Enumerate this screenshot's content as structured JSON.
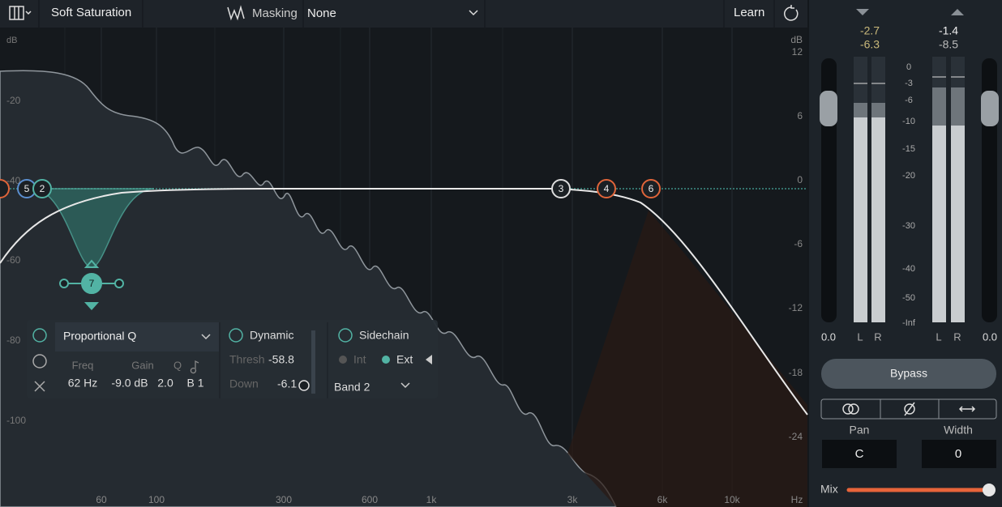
{
  "toolbar": {
    "preset": "Soft Saturation",
    "masking": "Masking",
    "masking_value": "None",
    "learn": "Learn"
  },
  "graph": {
    "left_unit": "dB",
    "left_labels": [
      "-20",
      "-40",
      "-60",
      "-80",
      "-100"
    ],
    "right_unit": "dB",
    "right_labels": [
      "12",
      "6",
      "0",
      "-6",
      "-12",
      "-18",
      "-24"
    ],
    "freq_labels": [
      "60",
      "100",
      "300",
      "600",
      "1k",
      "3k",
      "6k",
      "10k",
      "Hz"
    ],
    "nodes": [
      "5",
      "2",
      "3",
      "4",
      "6",
      "7"
    ]
  },
  "band_panel": {
    "shape": "Proportional Q",
    "headers": [
      "Freq",
      "Gain",
      "Q"
    ],
    "values": [
      "62 Hz",
      "-9.0 dB",
      "2.0",
      "B 1"
    ],
    "dynamic": "Dynamic",
    "thresh_label": "Thresh",
    "thresh": "-58.8",
    "down_label": "Down",
    "down": "-6.1",
    "sidechain": "Sidechain",
    "int": "Int",
    "ext": "Ext",
    "band": "Band 2"
  },
  "meters": {
    "input_peaks": [
      "-2.7",
      "-6.3"
    ],
    "output_peaks": [
      "-1.4",
      "-8.5"
    ],
    "scale": [
      "0",
      "-3",
      "-6",
      "-10",
      "-15",
      "-20",
      "-30",
      "-40",
      "-50",
      "-Inf"
    ],
    "input_gain": "0.0",
    "output_gain": "0.0",
    "channels": [
      "L",
      "R",
      "L",
      "R"
    ]
  },
  "controls": {
    "bypass": "Bypass",
    "pan_label": "Pan",
    "pan": "C",
    "width_label": "Width",
    "width": "0",
    "mix": "Mix"
  }
}
